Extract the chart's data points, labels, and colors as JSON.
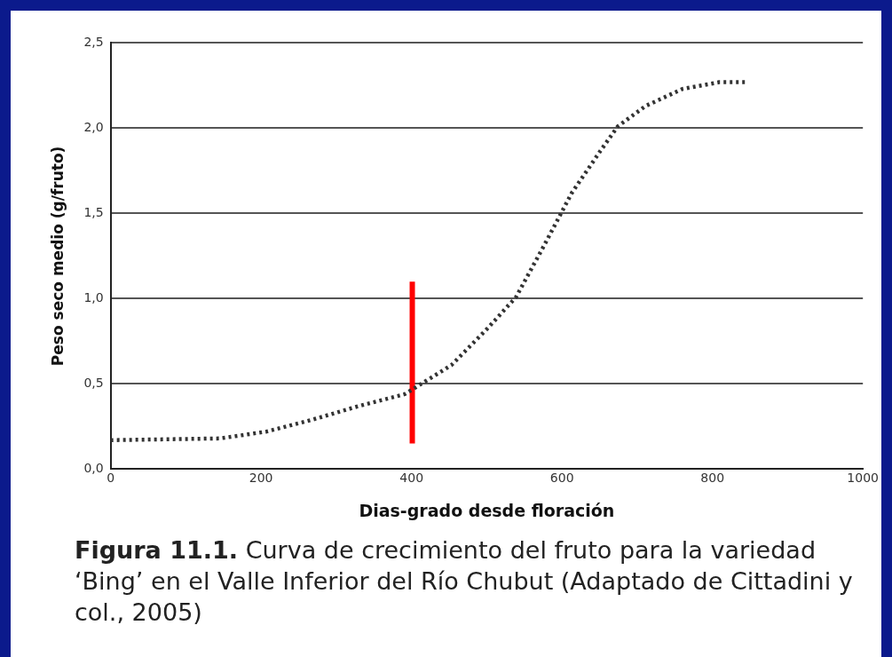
{
  "chart_data": {
    "type": "line",
    "xlabel": "Dias-grado desde floración",
    "ylabel": "Peso seco medio (g/fruto)",
    "annotations": [
      "Figura 11.1. Curva de crecimiento del fruto para la variedad ‘Bing’ en el Valle Inferior del Río Chubut (Adaptado de Cittadini y col., 2005)"
    ],
    "series": [
      {
        "color": "#333333",
        "line_style": "dotted",
        "x": [
          0,
          145,
          207,
          268,
          330,
          391,
          453,
          502,
          539,
          576,
          613,
          650,
          674,
          711,
          760,
          809,
          846
        ],
        "values": [
          0.17,
          0.18,
          0.22,
          0.29,
          0.37,
          0.44,
          0.61,
          0.83,
          1.01,
          1.31,
          1.62,
          1.86,
          2.01,
          2.13,
          2.23,
          2.27,
          2.27
        ]
      },
      {
        "color": "#ff0000",
        "line_style": "solid",
        "x": [
          401,
          401
        ],
        "values": [
          0.15,
          1.1
        ]
      }
    ],
    "xlim": [
      0,
      1000
    ],
    "xticks": [
      0,
      200,
      400,
      600,
      800,
      1000
    ],
    "ylim": [
      0,
      2.5
    ],
    "yticks": [
      {
        "value": 0,
        "label": "0,0"
      },
      {
        "value": 0.5,
        "label": "0,5"
      },
      {
        "value": 1,
        "label": "1,0"
      },
      {
        "value": 1.5,
        "label": "1,5"
      },
      {
        "value": 2,
        "label": "2,0"
      },
      {
        "value": 2.5,
        "label": "2,5"
      }
    ],
    "grid": "y",
    "legend": false,
    "marker": "none"
  }
}
